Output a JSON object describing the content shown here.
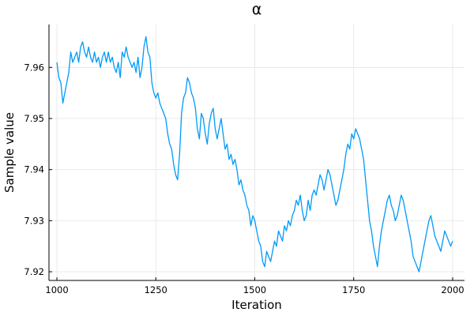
{
  "chart_data": {
    "type": "line",
    "title": "α",
    "xlabel": "Iteration",
    "ylabel": "Sample value",
    "xlim": [
      980,
      2030
    ],
    "ylim": [
      7.9183,
      7.9684
    ],
    "xticks": [
      1000,
      1250,
      1500,
      1750,
      2000
    ],
    "yticks": [
      7.92,
      7.93,
      7.94,
      7.95,
      7.96
    ],
    "ytick_labels": [
      "7.92",
      "7.93",
      "7.94",
      "7.95",
      "7.96"
    ],
    "grid": true,
    "legend": "none",
    "series": [
      {
        "color": "#009af9",
        "x": [
          1000,
          1005,
          1010,
          1015,
          1020,
          1025,
          1030,
          1035,
          1040,
          1045,
          1050,
          1055,
          1060,
          1065,
          1070,
          1075,
          1080,
          1085,
          1090,
          1095,
          1100,
          1105,
          1110,
          1115,
          1120,
          1125,
          1130,
          1135,
          1140,
          1145,
          1150,
          1155,
          1160,
          1165,
          1170,
          1175,
          1180,
          1185,
          1190,
          1195,
          1200,
          1205,
          1210,
          1215,
          1220,
          1225,
          1230,
          1235,
          1240,
          1245,
          1250,
          1255,
          1260,
          1265,
          1270,
          1275,
          1280,
          1285,
          1290,
          1295,
          1300,
          1305,
          1310,
          1315,
          1320,
          1325,
          1330,
          1335,
          1340,
          1345,
          1350,
          1355,
          1360,
          1365,
          1370,
          1375,
          1380,
          1385,
          1390,
          1395,
          1400,
          1405,
          1410,
          1415,
          1420,
          1425,
          1430,
          1435,
          1440,
          1445,
          1450,
          1455,
          1460,
          1465,
          1470,
          1475,
          1480,
          1485,
          1490,
          1495,
          1500,
          1505,
          1510,
          1515,
          1520,
          1525,
          1530,
          1535,
          1540,
          1545,
          1550,
          1555,
          1560,
          1565,
          1570,
          1575,
          1580,
          1585,
          1590,
          1595,
          1600,
          1605,
          1610,
          1615,
          1620,
          1625,
          1630,
          1635,
          1640,
          1645,
          1650,
          1655,
          1660,
          1665,
          1670,
          1675,
          1680,
          1685,
          1690,
          1695,
          1700,
          1705,
          1710,
          1715,
          1720,
          1725,
          1730,
          1735,
          1740,
          1745,
          1750,
          1755,
          1760,
          1765,
          1770,
          1775,
          1780,
          1785,
          1790,
          1795,
          1800,
          1805,
          1810,
          1815,
          1820,
          1825,
          1830,
          1835,
          1840,
          1845,
          1850,
          1855,
          1860,
          1865,
          1870,
          1875,
          1880,
          1885,
          1890,
          1895,
          1900,
          1905,
          1910,
          1915,
          1920,
          1925,
          1930,
          1935,
          1940,
          1945,
          1950,
          1955,
          1960,
          1965,
          1970,
          1975,
          1980,
          1985,
          1990,
          1995,
          2000
        ],
        "values": [
          7.961,
          7.958,
          7.957,
          7.953,
          7.955,
          7.957,
          7.959,
          7.963,
          7.961,
          7.962,
          7.963,
          7.961,
          7.964,
          7.965,
          7.963,
          7.962,
          7.964,
          7.962,
          7.961,
          7.963,
          7.961,
          7.962,
          7.96,
          7.962,
          7.963,
          7.961,
          7.963,
          7.961,
          7.962,
          7.96,
          7.959,
          7.961,
          7.958,
          7.963,
          7.962,
          7.964,
          7.962,
          7.961,
          7.96,
          7.961,
          7.959,
          7.962,
          7.958,
          7.96,
          7.964,
          7.966,
          7.963,
          7.962,
          7.957,
          7.955,
          7.954,
          7.955,
          7.953,
          7.952,
          7.951,
          7.95,
          7.947,
          7.945,
          7.944,
          7.941,
          7.939,
          7.938,
          7.943,
          7.951,
          7.954,
          7.955,
          7.958,
          7.957,
          7.955,
          7.954,
          7.952,
          7.948,
          7.946,
          7.951,
          7.95,
          7.947,
          7.945,
          7.949,
          7.951,
          7.952,
          7.948,
          7.946,
          7.948,
          7.95,
          7.947,
          7.944,
          7.945,
          7.942,
          7.943,
          7.941,
          7.942,
          7.94,
          7.937,
          7.938,
          7.936,
          7.935,
          7.933,
          7.932,
          7.929,
          7.931,
          7.93,
          7.928,
          7.926,
          7.925,
          7.922,
          7.921,
          7.924,
          7.923,
          7.922,
          7.924,
          7.926,
          7.925,
          7.928,
          7.927,
          7.926,
          7.929,
          7.928,
          7.93,
          7.929,
          7.931,
          7.932,
          7.934,
          7.933,
          7.935,
          7.932,
          7.93,
          7.931,
          7.934,
          7.932,
          7.935,
          7.936,
          7.935,
          7.937,
          7.939,
          7.938,
          7.936,
          7.938,
          7.94,
          7.939,
          7.937,
          7.935,
          7.933,
          7.934,
          7.936,
          7.938,
          7.94,
          7.943,
          7.945,
          7.944,
          7.947,
          7.946,
          7.948,
          7.947,
          7.946,
          7.944,
          7.942,
          7.938,
          7.934,
          7.93,
          7.928,
          7.925,
          7.923,
          7.921,
          7.925,
          7.928,
          7.93,
          7.932,
          7.934,
          7.935,
          7.933,
          7.932,
          7.93,
          7.931,
          7.933,
          7.935,
          7.934,
          7.932,
          7.93,
          7.928,
          7.926,
          7.923,
          7.922,
          7.921,
          7.92,
          7.922,
          7.924,
          7.926,
          7.928,
          7.93,
          7.931,
          7.929,
          7.927,
          7.926,
          7.925,
          7.924,
          7.926,
          7.928,
          7.927,
          7.926,
          7.925,
          7.926
        ]
      }
    ]
  }
}
